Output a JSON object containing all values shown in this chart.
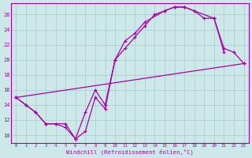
{
  "xlabel": "Windchill (Refroidissement éolien,°C)",
  "xlim": [
    -0.5,
    23.5
  ],
  "ylim": [
    9.0,
    27.5
  ],
  "yticks": [
    10,
    12,
    14,
    16,
    18,
    20,
    22,
    24,
    26
  ],
  "xticks": [
    0,
    1,
    2,
    3,
    4,
    5,
    6,
    7,
    8,
    9,
    10,
    11,
    12,
    13,
    14,
    15,
    16,
    17,
    18,
    19,
    20,
    21,
    22,
    23
  ],
  "bg_color": "#cce8e8",
  "grid_color": "#aacccc",
  "line_color": "#aa00aa",
  "series": [
    {
      "x": [
        0,
        1,
        2,
        3,
        4,
        5,
        6,
        7,
        8,
        9,
        10,
        11,
        12,
        13,
        14,
        15,
        16,
        17,
        18,
        19,
        20,
        21
      ],
      "y": [
        15.0,
        14.0,
        13.0,
        11.5,
        11.5,
        11.5,
        9.5,
        10.5,
        15.0,
        13.5,
        20.0,
        21.5,
        23.0,
        24.5,
        26.0,
        26.5,
        27.0,
        27.0,
        26.5,
        25.5,
        25.5,
        21.0
      ]
    },
    {
      "x": [
        0,
        1,
        2,
        3,
        4,
        5,
        6,
        7,
        8,
        9,
        10,
        11,
        12,
        13,
        15,
        16,
        17,
        18,
        20,
        21,
        22,
        23
      ],
      "y": [
        15.0,
        14.0,
        13.0,
        11.5,
        11.5,
        11.0,
        9.5,
        13.0,
        16.0,
        14.0,
        20.0,
        22.5,
        23.5,
        25.0,
        26.5,
        27.0,
        27.0,
        26.5,
        25.5,
        21.5,
        21.0,
        19.5
      ]
    },
    {
      "x": [
        0,
        23
      ],
      "y": [
        15.0,
        19.5
      ]
    }
  ]
}
